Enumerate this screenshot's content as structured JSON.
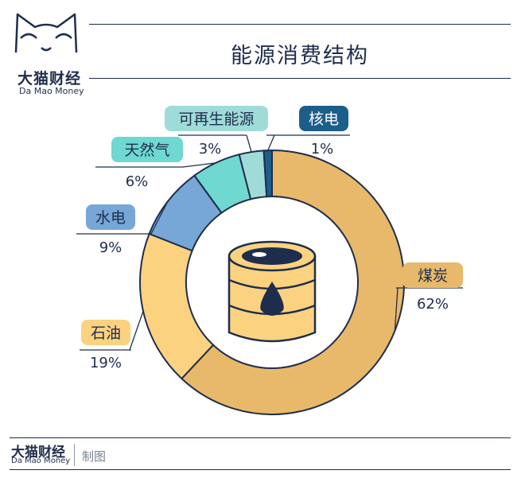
{
  "brand": {
    "name_cn": "大猫财经",
    "name_en": "Da Mao Money"
  },
  "title": "能源消费结构",
  "footer": {
    "name_cn": "大猫财经",
    "name_en": "Da Mao Money",
    "credit": "制图"
  },
  "colors": {
    "navy": "#1f2d4d",
    "coal": "#e8b96a",
    "oil": "#fbd27f",
    "hydro": "#76a7d6",
    "gas": "#6fd8d0",
    "renewable": "#9fdcd8",
    "nuclear": "#1c5e8a"
  },
  "icon": "oil-barrel-icon",
  "chart_data": {
    "type": "pie",
    "title": "能源消费结构",
    "unit": "%",
    "slices": [
      {
        "label": "煤炭",
        "value": 62,
        "display": "62%",
        "color": "#e8b96a"
      },
      {
        "label": "石油",
        "value": 19,
        "display": "19%",
        "color": "#fbd27f"
      },
      {
        "label": "水电",
        "value": 9,
        "display": "9%",
        "color": "#76a7d6"
      },
      {
        "label": "天然气",
        "value": 6,
        "display": "6%",
        "color": "#6fd8d0"
      },
      {
        "label": "可再生能源",
        "value": 3,
        "display": "3%",
        "color": "#9fdcd8"
      },
      {
        "label": "核电",
        "value": 1,
        "display": "1%",
        "color": "#1c5e8a"
      }
    ]
  }
}
